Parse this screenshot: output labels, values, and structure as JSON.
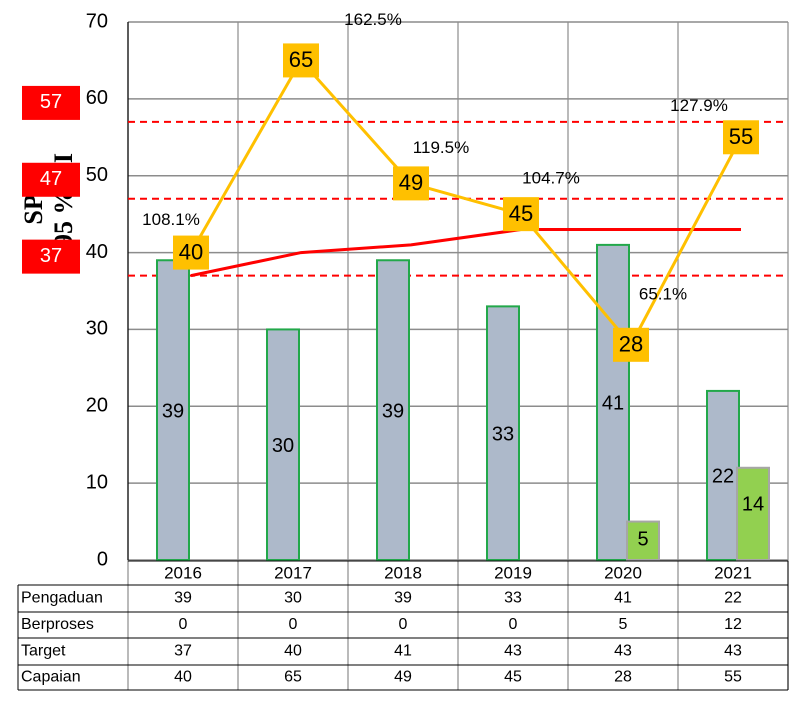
{
  "chart_data": {
    "type": "bar",
    "ylabel": [
      "SPC",
      "95 % CI"
    ],
    "categories": [
      "2016",
      "2017",
      "2018",
      "2019",
      "2020",
      "2021"
    ],
    "ylim": [
      0,
      70
    ],
    "yticks": [
      0,
      10,
      20,
      30,
      40,
      50,
      60,
      70
    ],
    "grid": true,
    "series": [
      {
        "name": "Pengaduan",
        "type": "bar",
        "color": "#adb9ca",
        "edge": "#22a84a",
        "values": [
          39,
          30,
          39,
          33,
          41,
          22
        ]
      },
      {
        "name": "Berproses",
        "type": "bar",
        "color": "#92d050",
        "edge": "#a6a6a6",
        "values": [
          0,
          0,
          0,
          0,
          5,
          12
        ],
        "value_labels": [
          null,
          null,
          null,
          null,
          "5",
          null
        ]
      },
      {
        "name": "Target",
        "type": "line",
        "color": "#ff0000",
        "values": [
          37,
          40,
          41,
          43,
          43,
          43
        ]
      },
      {
        "name": "Capaian",
        "type": "line",
        "color": "#ffc000",
        "values": [
          40,
          65,
          49,
          45,
          28,
          55
        ],
        "ratio_labels": [
          "108.1%",
          "162.5%",
          "119.5%",
          "104.7%",
          "65.1%",
          "127.9%"
        ]
      }
    ],
    "reference_lines": [
      {
        "value": 57,
        "color": "#ff0000"
      },
      {
        "value": 47,
        "color": "#ff0000"
      },
      {
        "value": 37,
        "color": "#ff0000"
      }
    ],
    "annotations": [
      {
        "text": "14"
      }
    ]
  }
}
